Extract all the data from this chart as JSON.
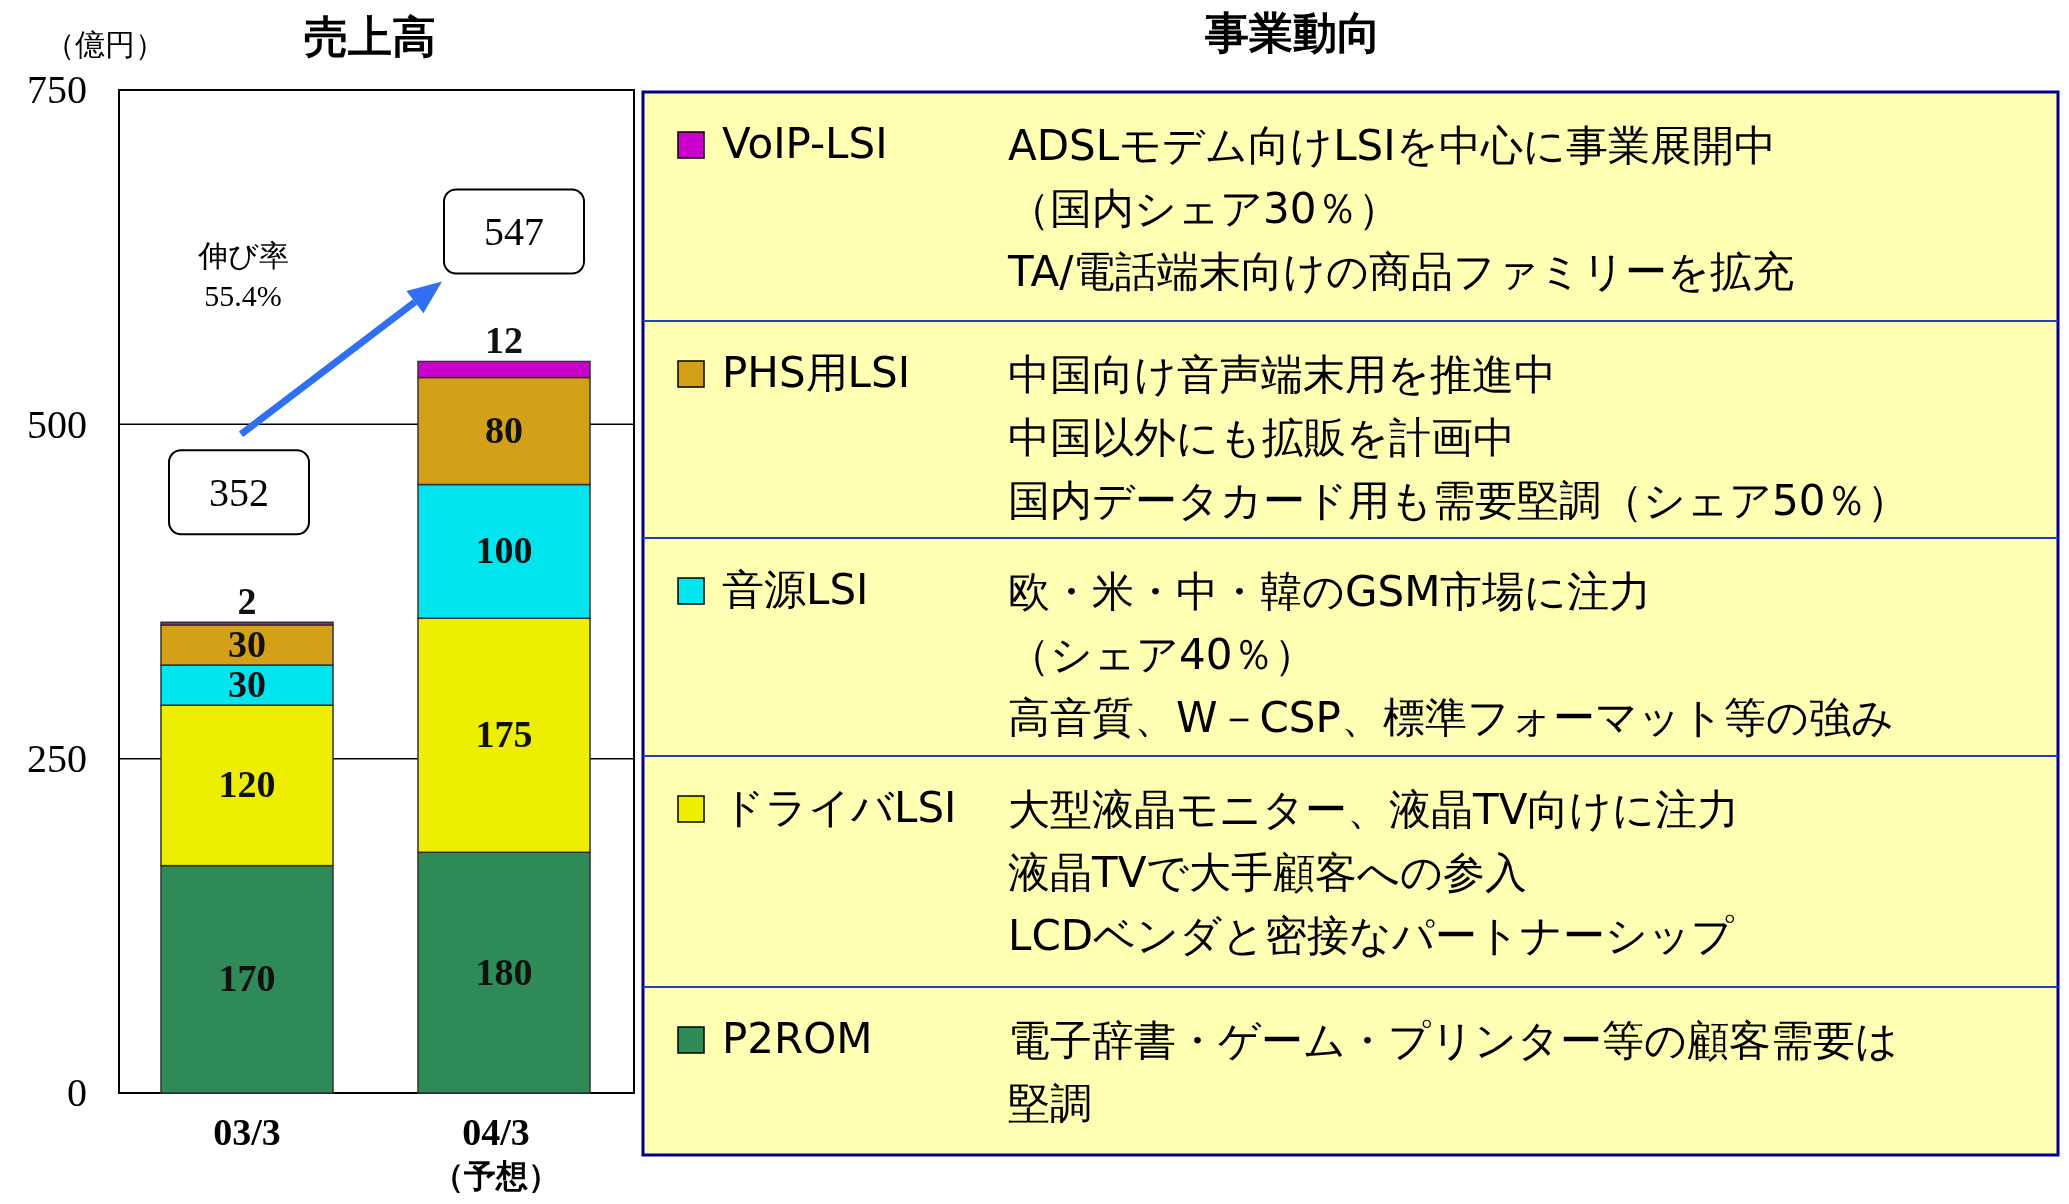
{
  "chart_data": {
    "type": "bar",
    "title": "売上高",
    "ylabel": "（億円）",
    "stacked": true,
    "categories": [
      "03/3",
      "04/3\n（予想）"
    ],
    "series": [
      {
        "name": "P2ROM",
        "color": "#2e8b57",
        "values": [
          170,
          180
        ]
      },
      {
        "name": "ドライバLSI",
        "color": "#eeee00",
        "values": [
          120,
          175
        ]
      },
      {
        "name": "音源LSI",
        "color": "#00e5ee",
        "values": [
          30,
          100
        ]
      },
      {
        "name": "PHS用LSI",
        "color": "#d4a017",
        "values": [
          30,
          80
        ]
      },
      {
        "name": "VoIP-LSI",
        "color": "#cc00cc",
        "values": [
          2,
          12
        ]
      }
    ],
    "ylim": [
      0,
      750
    ],
    "yticks": [
      0,
      250,
      500,
      750
    ],
    "grid": "y",
    "data_labels": true,
    "totals": [
      "352",
      "547"
    ],
    "legend": "right",
    "annotations": [
      "事業動向",
      "ADSLモデム向けLSIを中心に事業展開中",
      "（国内シェア30％）",
      "TA/電話端末向けの商品ファミリーを拡充",
      "中国向け音声端末用を推進中",
      "中国以外にも拡販を計画中",
      "国内データカード用も需要堅調（シェア50％）",
      "欧・米・中・韓のGSM市場に注力",
      "（シェア40％）",
      "高音質、W－CSP、標準フォーマット等の強み",
      "大型液晶モニター、液晶TV向けに注力",
      "液晶TVで大手顧客への参入",
      "LCDベンダと密接なパートナーシップ",
      "電子辞書・ゲーム・プリンター等の顧客需要は",
      "堅調",
      "伸び率\n55.4%"
    ]
  }
}
